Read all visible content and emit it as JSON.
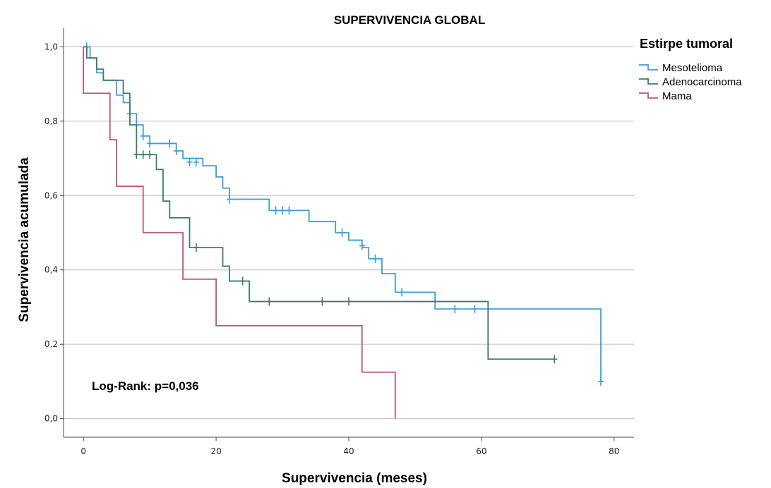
{
  "chart_data": {
    "type": "line",
    "title": "SUPERVIVENCIA GLOBAL",
    "xlabel": "Supervivencia (meses)",
    "ylabel": "Supervivencia acumulada",
    "xlim": [
      -3,
      83
    ],
    "ylim": [
      -0.05,
      1.05
    ],
    "x_ticks": [
      0,
      20,
      40,
      60,
      80
    ],
    "x_tick_labels": [
      "0",
      "20",
      "40",
      "60",
      "80"
    ],
    "y_ticks": [
      0.0,
      0.2,
      0.4,
      0.6,
      0.8,
      1.0
    ],
    "y_tick_labels": [
      "0,0",
      "0,2",
      "0,4",
      "0,6",
      "0,8",
      "1,0"
    ],
    "grid": "horizontal",
    "legend_title": "Estirpe tumoral",
    "legend_position": "top-right",
    "annotation": "Log-Rank: p=0,036",
    "series": [
      {
        "name": "Mesotelioma",
        "color": "#3a9fd6",
        "steps": [
          [
            0,
            1.0
          ],
          [
            0.5,
            1.0
          ],
          [
            1,
            0.97
          ],
          [
            2,
            0.93
          ],
          [
            3,
            0.91
          ],
          [
            5,
            0.87
          ],
          [
            6,
            0.85
          ],
          [
            7,
            0.82
          ],
          [
            8,
            0.79
          ],
          [
            9,
            0.76
          ],
          [
            10,
            0.74
          ],
          [
            14,
            0.72
          ],
          [
            15,
            0.7
          ],
          [
            18,
            0.68
          ],
          [
            20,
            0.65
          ],
          [
            21,
            0.62
          ],
          [
            22,
            0.59
          ],
          [
            28,
            0.56
          ],
          [
            34,
            0.53
          ],
          [
            38,
            0.5
          ],
          [
            40,
            0.48
          ],
          [
            42,
            0.46
          ],
          [
            43,
            0.43
          ],
          [
            45,
            0.39
          ],
          [
            47,
            0.34
          ],
          [
            53,
            0.295
          ],
          [
            78,
            0.1
          ]
        ],
        "end_x": 78,
        "censors": [
          [
            0.5,
            1.0
          ],
          [
            7,
            0.82
          ],
          [
            8,
            0.79
          ],
          [
            9,
            0.76
          ],
          [
            10,
            0.74
          ],
          [
            13,
            0.74
          ],
          [
            14,
            0.72
          ],
          [
            16,
            0.69
          ],
          [
            17,
            0.69
          ],
          [
            22,
            0.59
          ],
          [
            29,
            0.56
          ],
          [
            30,
            0.56
          ],
          [
            31,
            0.56
          ],
          [
            39,
            0.5
          ],
          [
            42,
            0.465
          ],
          [
            44,
            0.43
          ],
          [
            48,
            0.34
          ],
          [
            56,
            0.295
          ],
          [
            59,
            0.295
          ],
          [
            78,
            0.1
          ]
        ]
      },
      {
        "name": "Adenocarcinoma",
        "color": "#3d7a6e",
        "steps": [
          [
            0,
            1.0
          ],
          [
            0.5,
            0.97
          ],
          [
            2,
            0.94
          ],
          [
            3,
            0.91
          ],
          [
            6,
            0.875
          ],
          [
            7,
            0.79
          ],
          [
            8,
            0.71
          ],
          [
            11,
            0.67
          ],
          [
            12,
            0.585
          ],
          [
            13,
            0.54
          ],
          [
            16,
            0.46
          ],
          [
            21,
            0.41
          ],
          [
            22,
            0.37
          ],
          [
            25,
            0.315
          ],
          [
            61,
            0.16
          ]
        ],
        "end_x": 71,
        "censors": [
          [
            8,
            0.71
          ],
          [
            9,
            0.71
          ],
          [
            10,
            0.71
          ],
          [
            17,
            0.46
          ],
          [
            24,
            0.37
          ],
          [
            28,
            0.315
          ],
          [
            36,
            0.315
          ],
          [
            40,
            0.315
          ],
          [
            71,
            0.16
          ]
        ]
      },
      {
        "name": "Mama",
        "color": "#c2527a",
        "steps": [
          [
            0,
            1.0
          ],
          [
            0,
            0.875
          ],
          [
            4,
            0.75
          ],
          [
            5,
            0.625
          ],
          [
            9,
            0.5
          ],
          [
            15,
            0.375
          ],
          [
            20,
            0.25
          ],
          [
            42,
            0.125
          ],
          [
            47,
            0.0
          ]
        ],
        "end_x": 47,
        "censors": []
      }
    ]
  }
}
